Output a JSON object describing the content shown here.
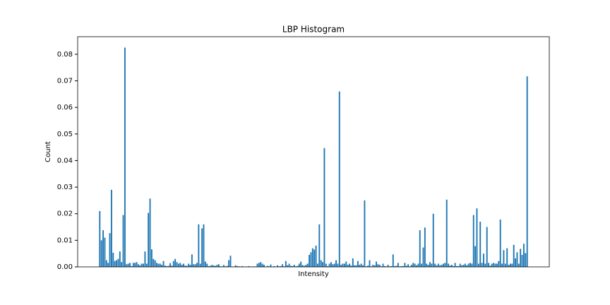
{
  "chart_data": {
    "type": "bar",
    "title": "LBP Histogram",
    "x_label": "Intensity",
    "y_label": "Count",
    "color": "#1f77b4",
    "values": [
      0.021,
      0.01,
      0.0138,
      0.011,
      0.0025,
      0.0015,
      0.0127,
      0.029,
      0.0053,
      0.0022,
      0.0025,
      0.003,
      0.0058,
      0.0018,
      0.0195,
      0.0825,
      0.001,
      0.0012,
      0.0015,
      0.0003,
      0.0015,
      0.0015,
      0.0018,
      0.001,
      0.0006,
      0.0012,
      0.0012,
      0.0058,
      0.0012,
      0.0203,
      0.0257,
      0.0066,
      0.003,
      0.0025,
      0.0015,
      0.0012,
      0.0012,
      0.0008,
      0.0022,
      0.0005,
      0.0003,
      0.0004,
      0.0014,
      0.0005,
      0.0022,
      0.003,
      0.0018,
      0.0012,
      0.0015,
      0.0008,
      0.0012,
      0.0005,
      0.0004,
      0.0012,
      0.0008,
      0.0047,
      0.001,
      0.001,
      0.0015,
      0.016,
      0.0012,
      0.0145,
      0.016,
      0.002,
      0.0012,
      0.0003,
      0.0004,
      0.0008,
      0.0005,
      0.0004,
      0.0008,
      0.001,
      0.0002,
      0.0002,
      0.0007,
      0.0002,
      0.0004,
      0.0025,
      0.0042,
      0.0001,
      0.0001,
      0.0006,
      0.0003,
      0.0002,
      0.0001,
      0.0003,
      0.0001,
      0.0001,
      0.0001,
      0.0003,
      0.0001,
      0.0001,
      0.0002,
      0.0001,
      0.0012,
      0.0015,
      0.0018,
      0.0012,
      0.0008,
      0.0001,
      0.0004,
      0.0002,
      0.0009,
      0.0001,
      0.0003,
      0.0001,
      0.0006,
      0.0002,
      0.0003,
      0.001,
      0.0002,
      0.0022,
      0.0006,
      0.0012,
      0.0004,
      0.0003,
      0.0008,
      0.0002,
      0.0004,
      0.0012,
      0.002,
      0.0007,
      0.0004,
      0.0008,
      0.0012,
      0.0045,
      0.0055,
      0.007,
      0.0065,
      0.008,
      0.0012,
      0.016,
      0.0025,
      0.0018,
      0.0447,
      0.0012,
      0.0003,
      0.0012,
      0.0018,
      0.001,
      0.0012,
      0.0025,
      0.0012,
      0.066,
      0.0008,
      0.0012,
      0.0012,
      0.002,
      0.0008,
      0.0012,
      0.0005,
      0.0032,
      0.0006,
      0.0006,
      0.0022,
      0.0008,
      0.0012,
      0.0006,
      0.025,
      0.0002,
      0.0005,
      0.0025,
      0.0002,
      0.0008,
      0.0006,
      0.002,
      0.001,
      0.0008,
      0.0002,
      0.0012,
      0.0003,
      0.0002,
      0.0008,
      0.0002,
      0.0003,
      0.0047,
      0.0003,
      0.0004,
      0.0015,
      0.0002,
      0.0003,
      0.0003,
      0.0015,
      0.0004,
      0.001,
      0.0002,
      0.0008,
      0.0015,
      0.0012,
      0.0006,
      0.0012,
      0.0138,
      0.0012,
      0.0073,
      0.0148,
      0.0012,
      0.0008,
      0.0018,
      0.0012,
      0.02,
      0.0012,
      0.0006,
      0.0012,
      0.0006,
      0.0008,
      0.0012,
      0.0015,
      0.0253,
      0.0012,
      0.0005,
      0.0008,
      0.0003,
      0.0015,
      0.0003,
      0.0003,
      0.0012,
      0.0006,
      0.0008,
      0.0012,
      0.0006,
      0.0012,
      0.0015,
      0.0012,
      0.0195,
      0.0078,
      0.022,
      0.0012,
      0.017,
      0.0015,
      0.005,
      0.0012,
      0.015,
      0.0015,
      0.0005,
      0.0012,
      0.0015,
      0.0012,
      0.0012,
      0.0022,
      0.0178,
      0.0012,
      0.0063,
      0.0012,
      0.007,
      0.0008,
      0.0012,
      0.0012,
      0.0083,
      0.0032,
      0.0055,
      0.0012,
      0.0068,
      0.0045,
      0.0087,
      0.0052,
      0.0717
    ],
    "ylim": [
      0,
      0.0866
    ],
    "yticks": [
      {
        "value": 0,
        "label": "0.00"
      },
      {
        "value": 0.01,
        "label": "0.01"
      },
      {
        "value": 0.02,
        "label": "0.02"
      },
      {
        "value": 0.03,
        "label": "0.03"
      },
      {
        "value": 0.04,
        "label": "0.04"
      },
      {
        "value": 0.05,
        "label": "0.05"
      },
      {
        "value": 0.06,
        "label": "0.06"
      },
      {
        "value": 0.07,
        "label": "0.07"
      },
      {
        "value": 0.08,
        "label": "0.08"
      }
    ],
    "grid": false
  }
}
